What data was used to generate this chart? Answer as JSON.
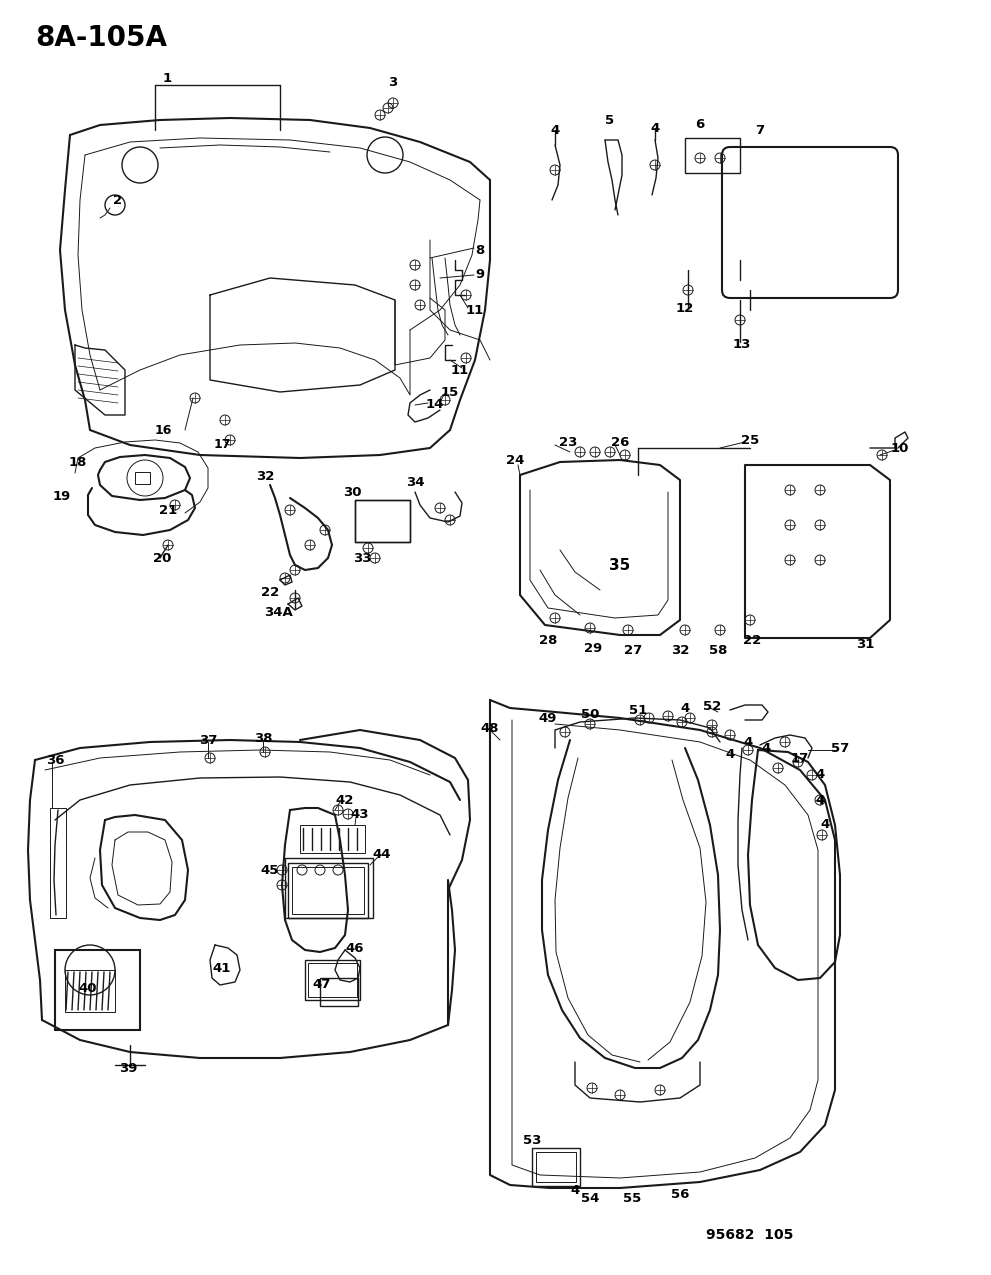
{
  "title": "8A-105A",
  "footer": "95682  105",
  "bg_color": "#ffffff",
  "line_color": "#1a1a1a",
  "title_fontsize": 20,
  "label_fontsize": 9.5,
  "figsize": [
    9.91,
    12.75
  ],
  "dpi": 100
}
